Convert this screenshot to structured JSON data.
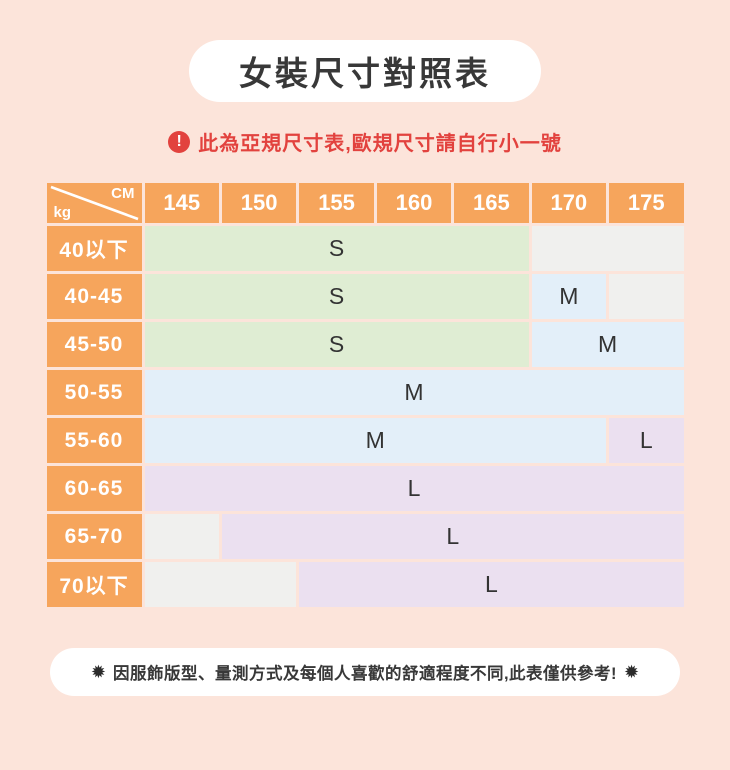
{
  "colors": {
    "background": "#fce4da",
    "pill_bg": "#ffffff",
    "orange_header": "#f6a55c",
    "cell_green": "#dfedd3",
    "cell_blue": "#e3eff9",
    "cell_purple": "#ebe0f0",
    "cell_grey": "#f0f0ee",
    "warning_red": "#e2423e",
    "title_text": "#383838",
    "cell_text": "#333333",
    "header_text": "#ffffff"
  },
  "title": "女裝尺寸對照表",
  "warning": {
    "icon_glyph": "!",
    "text": "此為亞規尺寸表,歐規尺寸請自行小一號"
  },
  "table": {
    "corner": {
      "top_right": "CM",
      "bottom_left": "kg"
    },
    "columns": [
      "145",
      "150",
      "155",
      "160",
      "165",
      "170",
      "175"
    ],
    "rows": [
      {
        "label": "40以下",
        "cells": [
          {
            "text": "S",
            "span": 5,
            "tone": "green"
          },
          {
            "text": "",
            "span": 2,
            "tone": "grey"
          }
        ]
      },
      {
        "label": "40-45",
        "cells": [
          {
            "text": "S",
            "span": 5,
            "tone": "green"
          },
          {
            "text": "M",
            "span": 1,
            "tone": "blue"
          },
          {
            "text": "",
            "span": 1,
            "tone": "grey"
          }
        ]
      },
      {
        "label": "45-50",
        "cells": [
          {
            "text": "S",
            "span": 5,
            "tone": "green"
          },
          {
            "text": "M",
            "span": 2,
            "tone": "blue"
          }
        ]
      },
      {
        "label": "50-55",
        "cells": [
          {
            "text": "M",
            "span": 7,
            "tone": "blue"
          }
        ]
      },
      {
        "label": "55-60",
        "cells": [
          {
            "text": "M",
            "span": 6,
            "tone": "blue"
          },
          {
            "text": "L",
            "span": 1,
            "tone": "purple"
          }
        ]
      },
      {
        "label": "60-65",
        "cells": [
          {
            "text": "L",
            "span": 7,
            "tone": "purple"
          }
        ]
      },
      {
        "label": "65-70",
        "cells": [
          {
            "text": "",
            "span": 1,
            "tone": "grey"
          },
          {
            "text": "L",
            "span": 6,
            "tone": "purple"
          }
        ]
      },
      {
        "label": "70以下",
        "cells": [
          {
            "text": "",
            "span": 2,
            "tone": "grey"
          },
          {
            "text": "L",
            "span": 5,
            "tone": "purple"
          }
        ]
      }
    ]
  },
  "footer": {
    "star": "✹",
    "text": "因服飾版型、量測方式及每個人喜歡的舒適程度不同,此表僅供參考!"
  },
  "chart_data": {
    "type": "table",
    "title": "女裝尺寸對照表",
    "x_header_cm": [
      145,
      150,
      155,
      160,
      165,
      170,
      175
    ],
    "y_header_kg": [
      "40以下",
      "40-45",
      "45-50",
      "50-55",
      "55-60",
      "60-65",
      "65-70",
      "70以下"
    ],
    "matrix": [
      [
        "S",
        "S",
        "S",
        "S",
        "S",
        "",
        ""
      ],
      [
        "S",
        "S",
        "S",
        "S",
        "S",
        "M",
        ""
      ],
      [
        "S",
        "S",
        "S",
        "S",
        "S",
        "M",
        "M"
      ],
      [
        "M",
        "M",
        "M",
        "M",
        "M",
        "M",
        "M"
      ],
      [
        "M",
        "M",
        "M",
        "M",
        "M",
        "M",
        "L"
      ],
      [
        "L",
        "L",
        "L",
        "L",
        "L",
        "L",
        "L"
      ],
      [
        "",
        "L",
        "L",
        "L",
        "L",
        "L",
        "L"
      ],
      [
        "",
        "",
        "L",
        "L",
        "L",
        "L",
        "L"
      ]
    ],
    "cell_tones": {
      "S": "#dfedd3",
      "M": "#e3eff9",
      "L": "#ebe0f0",
      "": "#f0f0ee"
    }
  }
}
